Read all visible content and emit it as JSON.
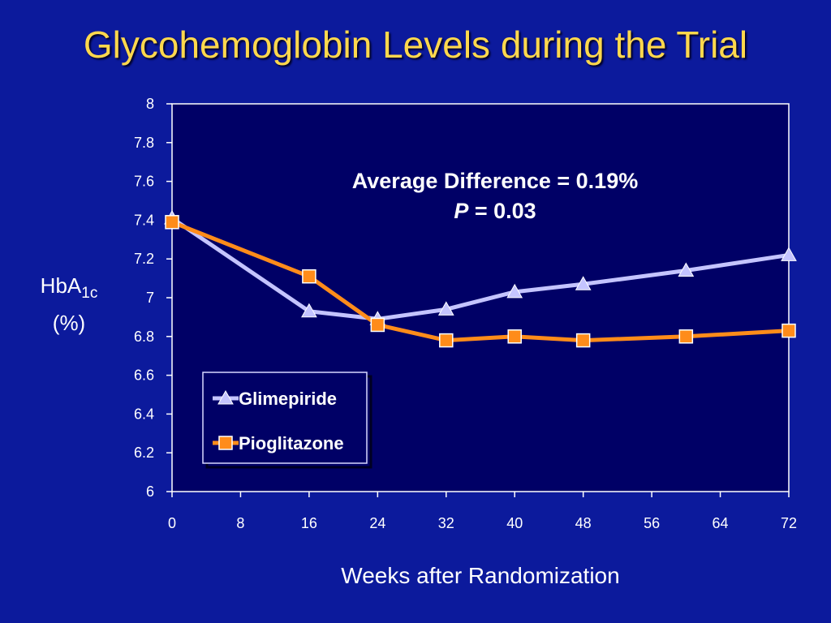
{
  "slide": {
    "title": "Glycohemoglobin Levels during the Trial"
  },
  "chart_data": {
    "type": "line",
    "title": "",
    "xlabel": "Weeks after Randomization",
    "ylabel_main": "HbA",
    "ylabel_sub": "1c",
    "ylabel_unit": "(%)",
    "xlim": [
      0,
      72
    ],
    "ylim": [
      6,
      8
    ],
    "x_ticks": [
      "0",
      "8",
      "16",
      "24",
      "32",
      "40",
      "48",
      "56",
      "64",
      "72"
    ],
    "y_ticks": [
      "6",
      "6.2",
      "6.4",
      "6.6",
      "6.8",
      "7",
      "7.2",
      "7.4",
      "7.6",
      "7.8",
      "8"
    ],
    "grid": false,
    "legend_position": "bottom-left",
    "annotation": {
      "line1": "Average Difference = 0.19%",
      "line2_italic": "P",
      "line2_rest": " = 0.03"
    },
    "series": [
      {
        "name": "Glimepiride",
        "marker": "triangle",
        "color": "#c4c4ff",
        "x": [
          0,
          16,
          24,
          32,
          40,
          48,
          60,
          72
        ],
        "y": [
          7.41,
          6.93,
          6.89,
          6.94,
          7.03,
          7.07,
          7.14,
          7.22
        ]
      },
      {
        "name": "Pioglitazone",
        "marker": "square",
        "color": "#ff8c1a",
        "x": [
          0,
          16,
          24,
          32,
          40,
          48,
          60,
          72
        ],
        "y": [
          7.39,
          7.11,
          6.86,
          6.78,
          6.8,
          6.78,
          6.8,
          6.83
        ]
      }
    ]
  },
  "colors": {
    "background": "#0c1a9c",
    "plot_area": "#000066",
    "title": "#ffd84d",
    "axis": "#ffffff"
  }
}
